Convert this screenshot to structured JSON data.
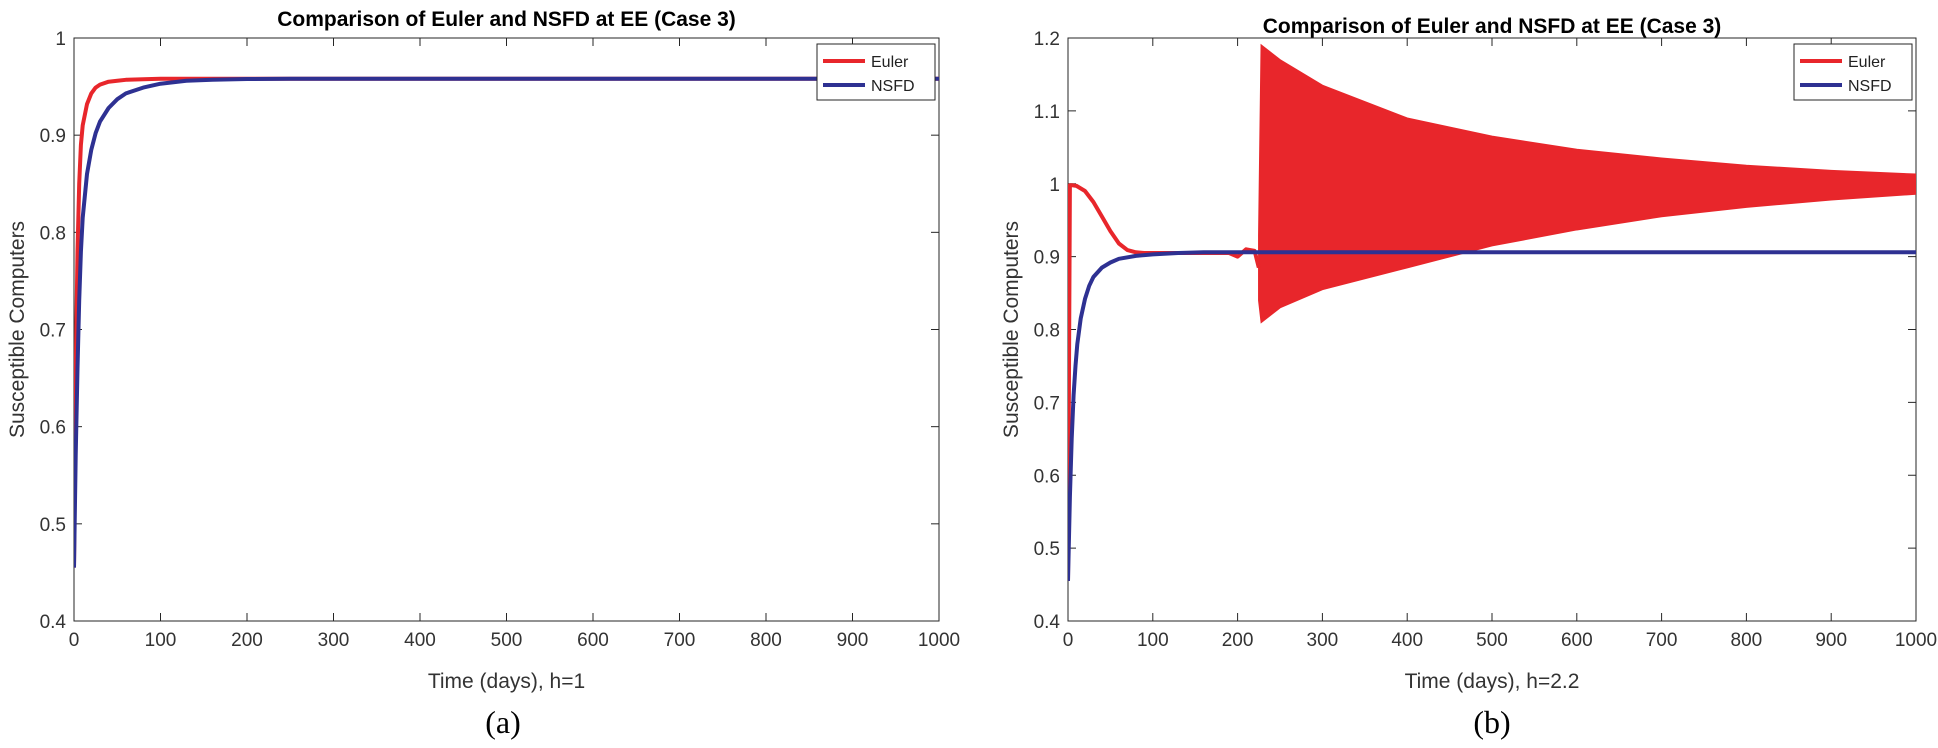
{
  "chart_data": [
    {
      "type": "line",
      "title": "Comparison of Euler and NSFD at EE (Case 3)",
      "xlabel": "Time (days), h=1",
      "ylabel": "Susceptible Computers",
      "caption": "(a)",
      "xlim": [
        0,
        1000
      ],
      "ylim": [
        0.4,
        1.0
      ],
      "xticks": [
        0,
        100,
        200,
        300,
        400,
        500,
        600,
        700,
        800,
        900,
        1000
      ],
      "yticks": [
        0.4,
        0.5,
        0.6,
        0.7,
        0.8,
        0.9,
        1.0
      ],
      "xtick_labels": [
        "0",
        "100",
        "200",
        "300",
        "400",
        "500",
        "600",
        "700",
        "800",
        "900",
        "1000"
      ],
      "ytick_labels": [
        "0.4",
        "0.5",
        "0.6",
        "0.7",
        "0.8",
        "0.9",
        "1"
      ],
      "grid": false,
      "legend": "top-right",
      "series": [
        {
          "name": "Euler",
          "color": "#e8262b",
          "x": [
            0,
            2,
            4,
            6,
            8,
            10,
            15,
            20,
            25,
            30,
            40,
            50,
            60,
            80,
            100,
            130,
            160,
            200,
            300,
            500,
            1000
          ],
          "y": [
            0.455,
            0.65,
            0.78,
            0.85,
            0.89,
            0.91,
            0.932,
            0.943,
            0.949,
            0.952,
            0.955,
            0.956,
            0.957,
            0.9575,
            0.958,
            0.958,
            0.958,
            0.958,
            0.958,
            0.958,
            0.958
          ]
        },
        {
          "name": "NSFD",
          "color": "#2e3192",
          "x": [
            0,
            2,
            4,
            6,
            8,
            10,
            15,
            20,
            25,
            30,
            40,
            50,
            60,
            80,
            100,
            130,
            160,
            200,
            250,
            300,
            500,
            1000
          ],
          "y": [
            0.455,
            0.57,
            0.66,
            0.73,
            0.78,
            0.815,
            0.86,
            0.885,
            0.902,
            0.914,
            0.928,
            0.937,
            0.943,
            0.949,
            0.953,
            0.956,
            0.957,
            0.9578,
            0.958,
            0.958,
            0.958,
            0.958
          ]
        }
      ]
    },
    {
      "type": "line",
      "title": "Comparison of Euler and NSFD at EE (Case 3)",
      "xlabel": "Time (days), h=2.2",
      "ylabel": "Susceptible Computers",
      "caption": "(b)",
      "xlim": [
        0,
        1000
      ],
      "ylim": [
        0.4,
        1.2
      ],
      "xticks": [
        0,
        100,
        200,
        300,
        400,
        500,
        600,
        700,
        800,
        900,
        1000
      ],
      "yticks": [
        0.4,
        0.5,
        0.6,
        0.7,
        0.8,
        0.9,
        1.0,
        1.1,
        1.2
      ],
      "xtick_labels": [
        "0",
        "100",
        "200",
        "300",
        "400",
        "500",
        "600",
        "700",
        "800",
        "900",
        "1000"
      ],
      "ytick_labels": [
        "0.4",
        "0.5",
        "0.6",
        "0.7",
        "0.8",
        "0.9",
        "1",
        "1.1",
        "1.2"
      ],
      "grid": false,
      "legend": "top-right",
      "series": [
        {
          "name": "Euler",
          "color": "#e8262b",
          "x": [
            0,
            2.2,
            4.4,
            10,
            20,
            30,
            40,
            50,
            60,
            70,
            80,
            90,
            100,
            150,
            190,
            200,
            210,
            220
          ],
          "y": [
            0.455,
            0.998,
            0.998,
            0.997,
            0.99,
            0.975,
            0.955,
            0.935,
            0.918,
            0.909,
            0.906,
            0.905,
            0.905,
            0.905,
            0.905,
            0.9,
            0.91,
            0.908
          ],
          "oscillation_envelope": {
            "x": [
              225,
              228,
              250,
              300,
              400,
              500,
              600,
              700,
              800,
              900,
              1000
            ],
            "upper": [
              0.93,
              1.19,
              1.17,
              1.135,
              1.09,
              1.065,
              1.047,
              1.035,
              1.025,
              1.018,
              1.013
            ],
            "lower": [
              0.84,
              0.81,
              0.83,
              0.855,
              0.885,
              0.915,
              0.937,
              0.955,
              0.968,
              0.978,
              0.986
            ]
          }
        },
        {
          "name": "NSFD",
          "color": "#2e3192",
          "x": [
            0,
            2.2,
            4.4,
            6.6,
            8.8,
            11,
            15,
            20,
            25,
            30,
            40,
            50,
            60,
            80,
            100,
            130,
            160,
            200,
            300,
            500,
            1000
          ],
          "y": [
            0.455,
            0.57,
            0.65,
            0.71,
            0.75,
            0.78,
            0.815,
            0.842,
            0.86,
            0.872,
            0.885,
            0.892,
            0.897,
            0.901,
            0.903,
            0.905,
            0.906,
            0.906,
            0.906,
            0.906,
            0.906
          ]
        }
      ]
    }
  ]
}
